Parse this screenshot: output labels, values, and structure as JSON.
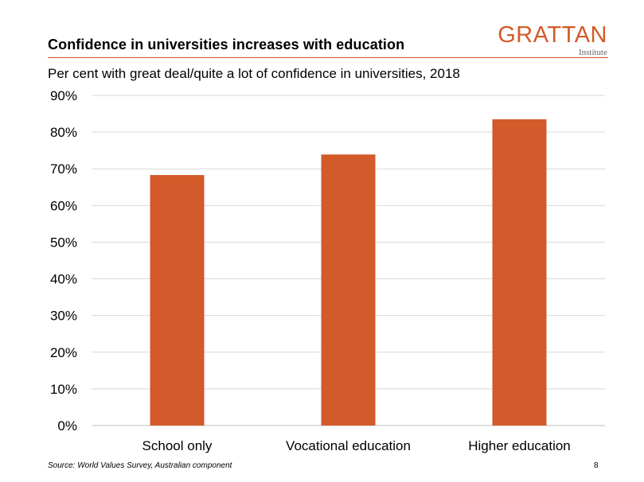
{
  "header": {
    "title": "Confidence in universities increases with education",
    "subtitle": "Per cent with great deal/quite a lot of confidence in universities, 2018",
    "logo_main": "GRATTAN",
    "logo_sub": "Institute"
  },
  "footer": {
    "source": "Source: World Values Survey,  Australian component",
    "page_number": "8"
  },
  "colors": {
    "bar": "#d35a2a",
    "accent": "#d35a2a",
    "grid": "#d9d9d9"
  },
  "chart_data": {
    "type": "bar",
    "categories": [
      "School only",
      "Vocational education",
      "Higher education"
    ],
    "values": [
      68.3,
      73.9,
      83.5
    ],
    "title": "Confidence in universities increases with education",
    "subtitle": "Per cent with great deal/quite a lot of confidence in universities, 2018",
    "xlabel": "",
    "ylabel": "",
    "ylim": [
      0,
      90
    ],
    "yticks": [
      0,
      10,
      20,
      30,
      40,
      50,
      60,
      70,
      80,
      90
    ],
    "ytick_labels": [
      "0%",
      "10%",
      "20%",
      "30%",
      "40%",
      "50%",
      "60%",
      "70%",
      "80%",
      "90%"
    ],
    "grid": true,
    "legend": "none"
  }
}
